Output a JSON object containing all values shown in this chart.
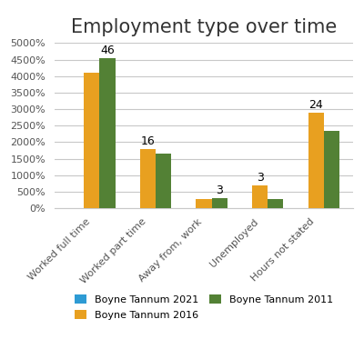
{
  "title": "Employment type over time",
  "categories": [
    "Worked full time",
    "Worked part time",
    "Away from, work",
    "Unemployed",
    "Hours not stated"
  ],
  "series": [
    {
      "label": "Boyne Tannum 2021",
      "color": "#2E9BD4",
      "values": [
        0,
        0,
        0,
        0,
        0
      ]
    },
    {
      "label": "Boyne Tannum 2016",
      "color": "#E8A020",
      "values": [
        4100,
        1800,
        280,
        700,
        2900
      ]
    },
    {
      "label": "Boyne Tannum 2011",
      "color": "#538135",
      "values": [
        4550,
        1650,
        310,
        280,
        2350
      ]
    }
  ],
  "annotations": [
    {
      "category": 0,
      "text": "46"
    },
    {
      "category": 1,
      "text": "16"
    },
    {
      "category": 2,
      "text": "3"
    },
    {
      "category": 3,
      "text": "3"
    },
    {
      "category": 4,
      "text": "24"
    }
  ],
  "ylim": [
    0,
    5000
  ],
  "yticks": [
    0,
    500,
    1000,
    1500,
    2000,
    2500,
    3000,
    3500,
    4000,
    4500,
    5000
  ],
  "background_color": "#ffffff",
  "grid_color": "#c8c8c8",
  "title_fontsize": 15,
  "tick_fontsize": 8,
  "bar_width": 0.28
}
